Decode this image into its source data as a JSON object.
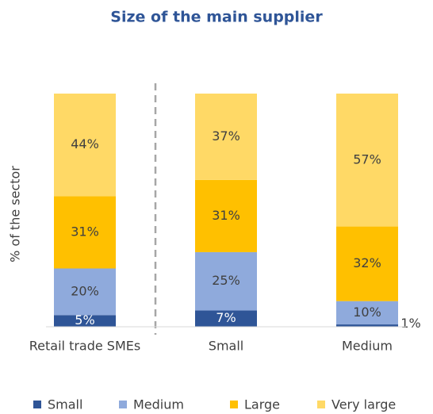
{
  "chart_data": {
    "type": "stacked_bar",
    "title": "Size of the main supplier",
    "y_label": "% of the sector",
    "categories": [
      "Retail trade SMEs",
      "Small",
      "Medium"
    ],
    "ylim": [
      0,
      100
    ],
    "series": [
      {
        "name": "Small",
        "color": "#2f5597",
        "values": [
          5,
          7,
          1
        ],
        "value_labels": [
          "5%",
          "7%",
          "1%"
        ]
      },
      {
        "name": "Medium",
        "color": "#8faadc",
        "values": [
          20,
          25,
          10
        ],
        "value_labels": [
          "20%",
          "25%",
          "10%"
        ]
      },
      {
        "name": "Large",
        "color": "#ffc000",
        "values": [
          31,
          31,
          32
        ],
        "value_labels": [
          "31%",
          "31%",
          "32%"
        ]
      },
      {
        "name": "Very large",
        "color": "#ffd966",
        "values": [
          44,
          37,
          57
        ],
        "value_labels": [
          "44%",
          "37%",
          "57%"
        ]
      }
    ]
  }
}
